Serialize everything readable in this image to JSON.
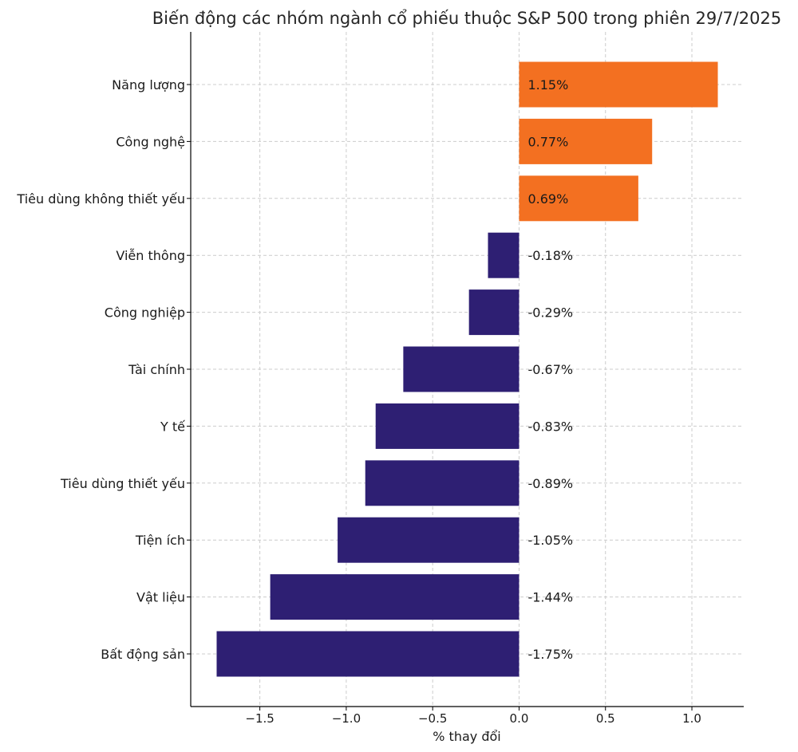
{
  "chart_data": {
    "type": "bar",
    "orientation": "horizontal",
    "title": "Biến động các nhóm ngành cổ phiếu thuộc S&P 500 trong phiên 29/7/2025",
    "xlabel": "% thay đổi",
    "ylabel": "",
    "xlim": [
      -1.9,
      1.3
    ],
    "xticks": [
      -1.5,
      -1.0,
      -0.5,
      0.0,
      0.5,
      1.0
    ],
    "xtick_labels": [
      "−1.5",
      "−1.0",
      "−0.5",
      "0.0",
      "0.5",
      "1.0"
    ],
    "grid": true,
    "categories": [
      "Năng lượng",
      "Công nghệ",
      "Tiêu dùng không thiết yếu",
      "Viễn thông",
      "Công nghiệp",
      "Tài chính",
      "Y tế",
      "Tiêu dùng thiết yếu",
      "Tiện ích",
      "Vật liệu",
      "Bất động sản"
    ],
    "values": [
      1.15,
      0.77,
      0.69,
      -0.18,
      -0.29,
      -0.67,
      -0.83,
      -0.89,
      -1.05,
      -1.44,
      -1.75
    ],
    "data_labels": [
      "1.15%",
      "0.77%",
      "0.69%",
      "-0.18%",
      "-0.29%",
      "-0.67%",
      "-0.83%",
      "-0.89%",
      "-1.05%",
      "-1.44%",
      "-1.75%"
    ],
    "colors": {
      "positive": "#f37021",
      "negative": "#2e1f73"
    }
  }
}
